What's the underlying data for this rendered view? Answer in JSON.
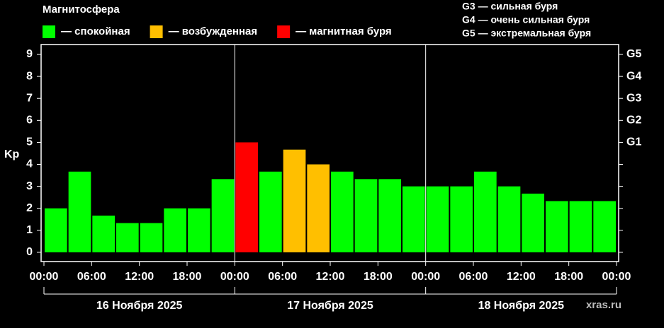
{
  "chart_data": {
    "type": "bar",
    "title": "Магнитосфера",
    "ylabel": "Kp",
    "notes": [
      "G3 — сильная буря",
      "G4 — очень сильная буря",
      "G5 — экстремальная буря"
    ],
    "watermark": "xras.ru",
    "x": [
      0,
      3,
      6,
      9,
      12,
      15,
      18,
      21,
      24,
      27,
      30,
      33,
      36,
      39,
      42,
      45,
      48,
      51,
      54,
      57,
      60,
      63,
      66,
      69
    ],
    "series": [
      {
        "name": "— спокойная",
        "color": "#00ff00",
        "values": [
          2,
          3.67,
          1.67,
          1.33,
          1.33,
          2,
          2,
          3.33,
          null,
          3.67,
          null,
          null,
          3.67,
          3.33,
          3.33,
          3,
          3,
          3,
          3.67,
          3,
          2.67,
          2.33,
          2.33,
          2.33
        ]
      },
      {
        "name": "— возбужденная",
        "color": "#ffbf00",
        "values": [
          null,
          null,
          null,
          null,
          null,
          null,
          null,
          null,
          null,
          null,
          4.67,
          4,
          null,
          null,
          null,
          null,
          null,
          null,
          null,
          null,
          null,
          null,
          null,
          null
        ]
      },
      {
        "name": "— магнитная буря",
        "color": "#ff0000",
        "values": [
          null,
          null,
          null,
          null,
          null,
          null,
          null,
          null,
          5,
          null,
          null,
          null,
          null,
          null,
          null,
          null,
          null,
          null,
          null,
          null,
          null,
          null,
          null,
          null
        ]
      }
    ],
    "xlim": [
      0,
      72
    ],
    "xticks": [
      {
        "value": 0,
        "label": "00:00"
      },
      {
        "value": 6,
        "label": "06:00"
      },
      {
        "value": 12,
        "label": "12:00"
      },
      {
        "value": 18,
        "label": "18:00"
      },
      {
        "value": 24,
        "label": "00:00"
      },
      {
        "value": 30,
        "label": "06:00"
      },
      {
        "value": 36,
        "label": "12:00"
      },
      {
        "value": 42,
        "label": "18:00"
      },
      {
        "value": 48,
        "label": "00:00"
      },
      {
        "value": 54,
        "label": "06:00"
      },
      {
        "value": 60,
        "label": "12:00"
      },
      {
        "value": 66,
        "label": "18:00"
      },
      {
        "value": 72,
        "label": "00:00"
      }
    ],
    "days": [
      "16 Ноября 2025",
      "17 Ноября 2025",
      "18 Ноября 2025"
    ],
    "day_bounds": [
      0,
      24,
      48,
      72
    ],
    "ylim": [
      -0.42,
      9.45
    ],
    "yticks": [
      0,
      1,
      2,
      3,
      4,
      5,
      6,
      7,
      8,
      9
    ],
    "gticks": [
      {
        "value": 5,
        "label": "G1"
      },
      {
        "value": 6,
        "label": "G2"
      },
      {
        "value": 7,
        "label": "G3"
      },
      {
        "value": 8,
        "label": "G4"
      },
      {
        "value": 9,
        "label": "G5"
      }
    ]
  }
}
